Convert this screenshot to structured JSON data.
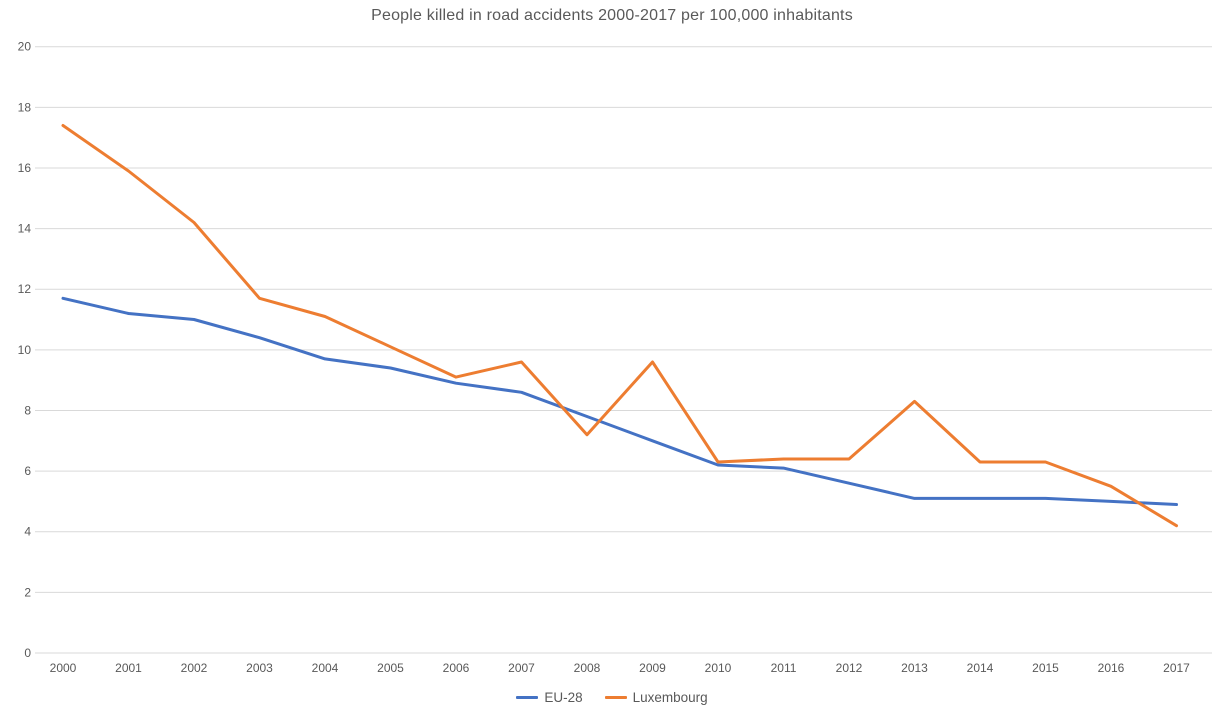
{
  "chart_data": {
    "type": "line",
    "title": "People killed in road accidents 2000-2017 per 100,000 inhabitants",
    "x": [
      2000,
      2001,
      2002,
      2003,
      2004,
      2005,
      2006,
      2007,
      2008,
      2009,
      2010,
      2011,
      2012,
      2013,
      2014,
      2015,
      2016,
      2017
    ],
    "series": [
      {
        "name": "EU-28",
        "color": "#4472C4",
        "values": [
          11.7,
          11.2,
          11.0,
          10.4,
          9.7,
          9.4,
          8.9,
          8.6,
          7.8,
          7.0,
          6.2,
          6.1,
          5.6,
          5.1,
          5.1,
          5.1,
          5.0,
          4.9
        ]
      },
      {
        "name": "Luxembourg",
        "color": "#ED7D31",
        "values": [
          17.4,
          15.9,
          14.2,
          11.7,
          11.1,
          10.1,
          9.1,
          9.6,
          7.2,
          9.6,
          6.3,
          6.4,
          6.4,
          8.3,
          6.3,
          6.3,
          5.5,
          4.2
        ]
      }
    ],
    "xlabel": "",
    "ylabel": "",
    "ylim": [
      0,
      20
    ],
    "ytick_step": 2,
    "yticks": [
      0,
      2,
      4,
      6,
      8,
      10,
      12,
      14,
      16,
      18,
      20
    ],
    "grid": true,
    "legend_position": "bottom"
  },
  "colors": {
    "gridline": "#D9D9D9",
    "axis_text": "#595959",
    "title_text": "#595959",
    "background": "#FFFFFF"
  }
}
